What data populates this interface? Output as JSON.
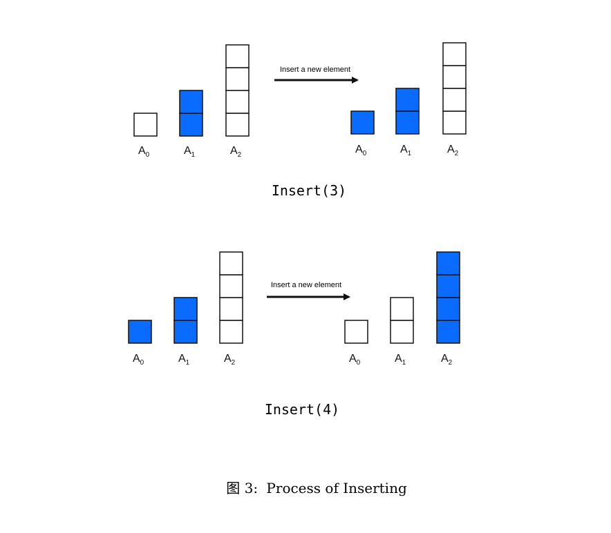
{
  "colors": {
    "filled": "#0a6cff",
    "empty": "#ffffff",
    "stroke": "#111111",
    "text": "#111111"
  },
  "panels": [
    {
      "id": "insert3",
      "arrow_label": "Insert a new element",
      "caption": "Insert(3)",
      "before": [
        {
          "base": "A",
          "sub": "0",
          "cells": 1,
          "filled": 0
        },
        {
          "base": "A",
          "sub": "1",
          "cells": 2,
          "filled": 2
        },
        {
          "base": "A",
          "sub": "2",
          "cells": 4,
          "filled": 0
        }
      ],
      "after": [
        {
          "base": "A",
          "sub": "0",
          "cells": 1,
          "filled": 1
        },
        {
          "base": "A",
          "sub": "1",
          "cells": 2,
          "filled": 2
        },
        {
          "base": "A",
          "sub": "2",
          "cells": 4,
          "filled": 0
        }
      ]
    },
    {
      "id": "insert4",
      "arrow_label": "Insert a new element",
      "caption": "Insert(4)",
      "before": [
        {
          "base": "A",
          "sub": "0",
          "cells": 1,
          "filled": 1
        },
        {
          "base": "A",
          "sub": "1",
          "cells": 2,
          "filled": 2
        },
        {
          "base": "A",
          "sub": "2",
          "cells": 4,
          "filled": 0
        }
      ],
      "after": [
        {
          "base": "A",
          "sub": "0",
          "cells": 1,
          "filled": 0
        },
        {
          "base": "A",
          "sub": "1",
          "cells": 2,
          "filled": 0
        },
        {
          "base": "A",
          "sub": "2",
          "cells": 4,
          "filled": 4
        }
      ]
    }
  ],
  "figure_caption": {
    "prefix": "图 3:",
    "text": "Process of Inserting"
  }
}
